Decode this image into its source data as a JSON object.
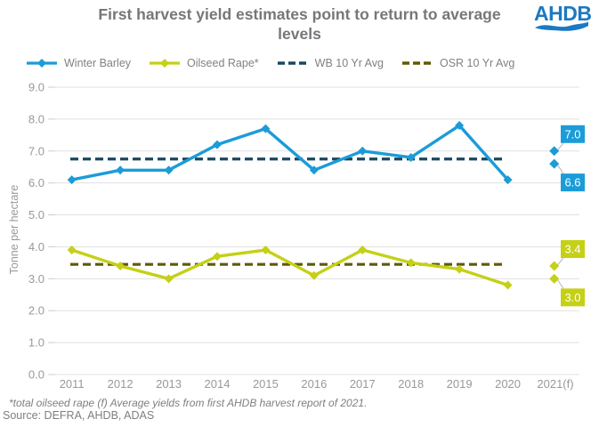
{
  "header": {
    "title_line1": "First harvest yield estimates point to return to average",
    "title_line2": "levels",
    "logo_text": "AHDB",
    "logo_color": "#1C79C2",
    "title_color": "#76777A"
  },
  "legend": [
    {
      "label": "Winter Barley",
      "marker": "line-diamond",
      "color": "#1B9CD8"
    },
    {
      "label": "Oilseed Rape*",
      "marker": "line-diamond",
      "color": "#C5D016"
    },
    {
      "label": "WB 10 Yr Avg",
      "marker": "dashed",
      "color": "#17485F"
    },
    {
      "label": "OSR 10 Yr Avg",
      "marker": "dashed",
      "color": "#5F5A00"
    }
  ],
  "chart_data": {
    "type": "line",
    "title": "First harvest yield estimates point to return to average levels",
    "xlabel": "",
    "ylabel": "Tonne per hectare",
    "ylim": [
      0,
      9
    ],
    "ytick_step": 1,
    "grid": true,
    "legend_position": "top",
    "categories": [
      "2011",
      "2012",
      "2013",
      "2014",
      "2015",
      "2016",
      "2017",
      "2018",
      "2019",
      "2020",
      "2021(f)"
    ],
    "series": [
      {
        "name": "Winter Barley",
        "color": "#1B9CD8",
        "values": [
          6.1,
          6.4,
          6.4,
          7.2,
          7.7,
          6.4,
          7.0,
          6.8,
          7.8,
          6.1
        ]
      },
      {
        "name": "Oilseed Rape*",
        "color": "#C5D016",
        "values": [
          3.9,
          3.4,
          3.0,
          3.7,
          3.9,
          3.1,
          3.9,
          3.5,
          3.3,
          2.8
        ]
      }
    ],
    "averages": [
      {
        "name": "WB 10 Yr Avg",
        "color": "#17485F",
        "value": 6.75
      },
      {
        "name": "OSR 10 Yr Avg",
        "color": "#5F5A00",
        "value": 3.45
      }
    ],
    "forecast_2021": [
      {
        "series": "Winter Barley",
        "color": "#1B9CD8",
        "points": [
          {
            "value": 7.0,
            "label": "7.0",
            "label_pos": "above"
          },
          {
            "value": 6.6,
            "label": "6.6",
            "label_pos": "below"
          }
        ]
      },
      {
        "series": "Oilseed Rape*",
        "color": "#C5D016",
        "points": [
          {
            "value": 3.4,
            "label": "3.4",
            "label_pos": "above"
          },
          {
            "value": 3.0,
            "label": "3.0",
            "label_pos": "below"
          }
        ]
      }
    ]
  },
  "footer": {
    "note": "*total oilseed rape (f) Average yields from first AHDB harvest report of 2021.",
    "source": "Source: DEFRA, AHDB, ADAS"
  }
}
